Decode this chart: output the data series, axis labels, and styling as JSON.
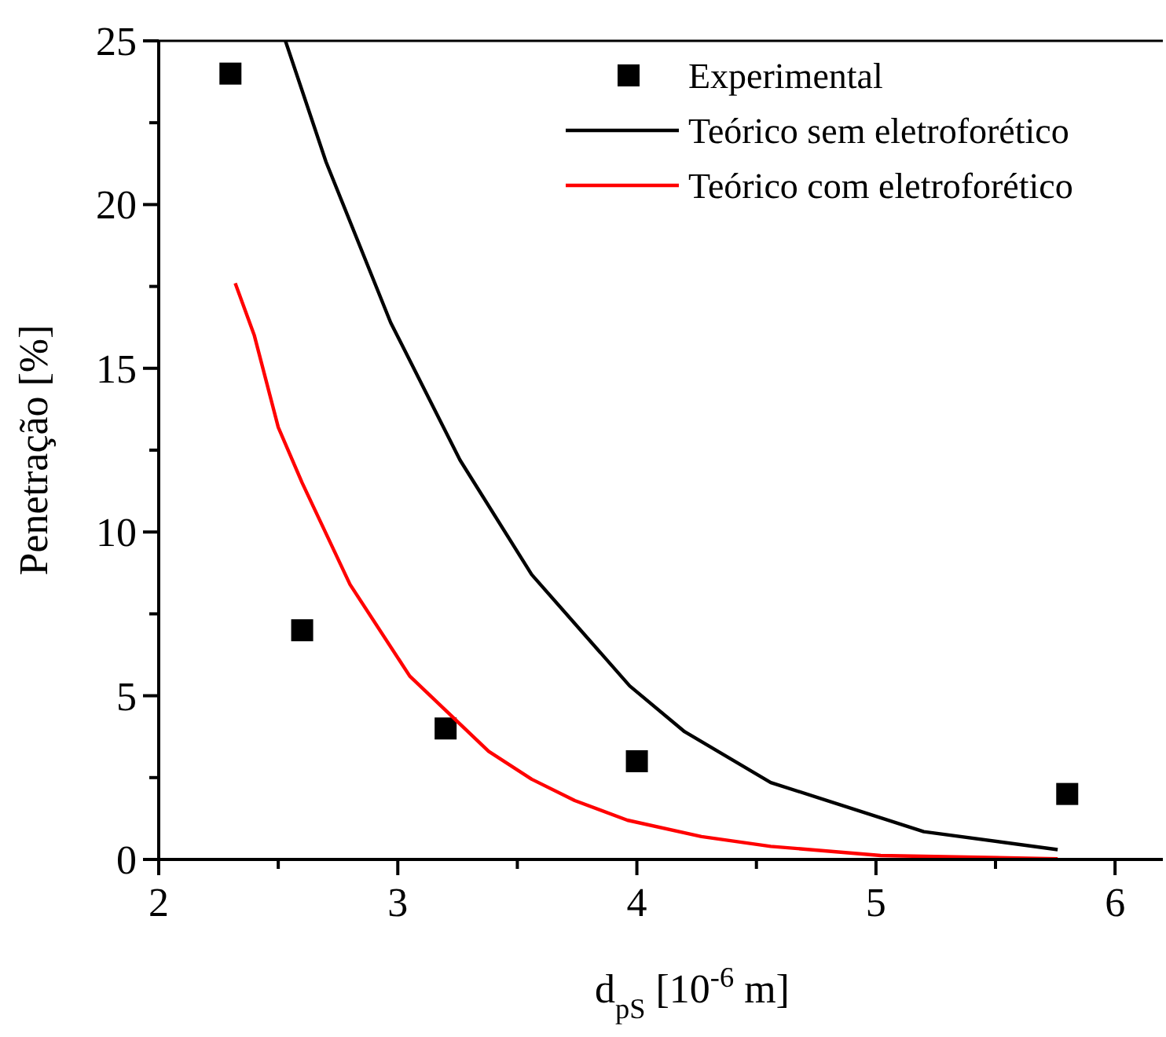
{
  "chart_data": {
    "type": "line",
    "xlabel": "d$_{pS}$ [10$^{-6}$ m]",
    "ylabel": "Penetração [%]",
    "xlim": [
      2,
      6.2
    ],
    "ylim": [
      0,
      25
    ],
    "xticks": [
      2,
      {
        "value": 2.5,
        "label": null
      },
      3,
      {
        "value": 3.5,
        "label": null
      },
      4,
      {
        "value": 4.5,
        "label": null
      },
      5,
      {
        "value": 5.5,
        "label": null
      },
      6
    ],
    "yticks": [
      0,
      {
        "value": 2.5,
        "label": null
      },
      5,
      {
        "value": 7.5,
        "label": null
      },
      10,
      {
        "value": 12.5,
        "label": null
      },
      15,
      {
        "value": 17.5,
        "label": null
      },
      20,
      {
        "value": 22.5,
        "label": null
      },
      25
    ],
    "grid": false,
    "legend": "top right",
    "series": [
      {
        "name": "Experimental",
        "type": "scatter",
        "marker": "square",
        "color": "#000000",
        "x": [
          2.3,
          2.6,
          3.2,
          4.0,
          5.8
        ],
        "values": [
          24,
          7,
          4,
          3,
          2
        ]
      },
      {
        "name": "Teórico sem eletroforético",
        "marker": "none",
        "line_style": "solid",
        "color": "#000000",
        "x": [
          2.53,
          2.7,
          2.97,
          3.26,
          3.56,
          3.97,
          4.2,
          4.56,
          5.2,
          5.76
        ],
        "values": [
          25,
          21.3,
          16.4,
          12.2,
          8.7,
          5.3,
          3.9,
          2.35,
          0.85,
          0.3
        ]
      },
      {
        "name": "Teórico com eletroforético",
        "marker": "none",
        "line_style": "solid",
        "color": "#ff0000",
        "x": [
          2.32,
          2.4,
          2.5,
          2.6,
          2.8,
          3.05,
          3.38,
          3.56,
          3.74,
          3.96,
          4.27,
          4.56,
          5.02,
          5.76
        ],
        "values": [
          17.6,
          16.0,
          13.2,
          11.5,
          8.4,
          5.6,
          3.3,
          2.45,
          1.8,
          1.2,
          0.7,
          0.4,
          0.12,
          0.02
        ]
      }
    ]
  }
}
